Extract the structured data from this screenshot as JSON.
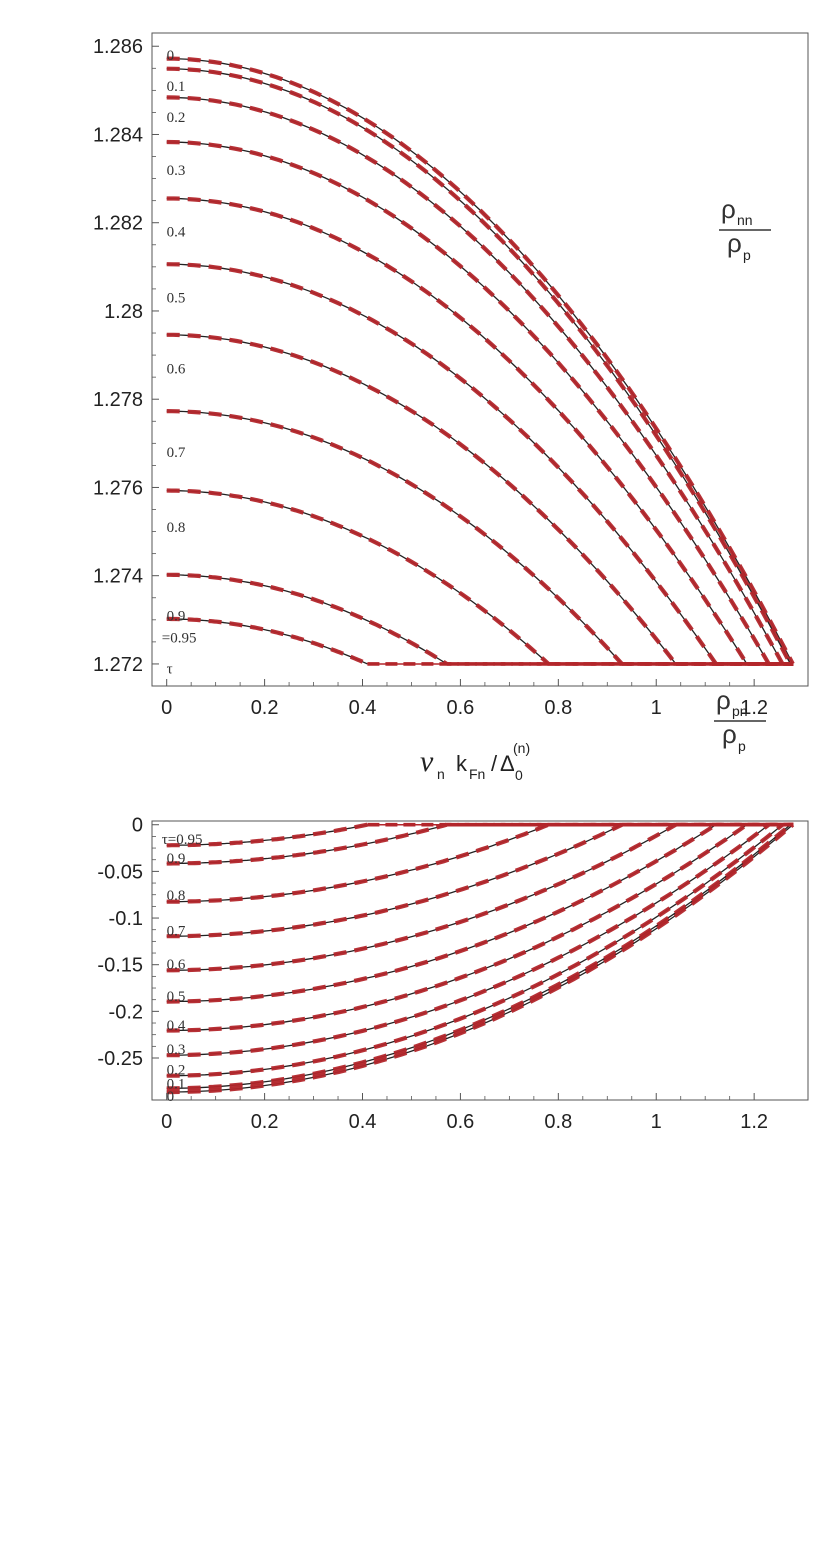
{
  "chart_data": [
    {
      "type": "line",
      "ratio_label": {
        "numerator": "ρ",
        "numerator_sub": "nn",
        "denominator": "ρ",
        "denominator_sub": "p"
      },
      "xlabel": {
        "var": "v",
        "var_sub": "n",
        "k": "k",
        "k_sub": "Fn",
        "slash": "/",
        "delta": "Δ",
        "delta_sub": "0",
        "delta_sup": "(n)"
      },
      "xlim": [
        -0.03,
        1.31
      ],
      "ylim": [
        1.2715,
        1.2863
      ],
      "xticks": [
        0,
        0.2,
        0.4,
        0.6,
        0.8,
        1,
        1.2
      ],
      "xtick_labels": [
        "0",
        "0.2",
        "0.4",
        "0.6",
        "0.8",
        "1",
        "1.2"
      ],
      "yticks": [
        1.272,
        1.274,
        1.276,
        1.278,
        1.28,
        1.282,
        1.284,
        1.286
      ],
      "ytick_labels": [
        "1.272",
        "1.274",
        "1.276",
        "1.278",
        "1.28",
        "1.282",
        "1.284",
        "1.286"
      ],
      "curve_labels": [
        {
          "text": "0",
          "x": 0.0,
          "y": 1.2858
        },
        {
          "text": "0.1",
          "x": 0.0,
          "y": 1.2851
        },
        {
          "text": "0.2",
          "x": 0.0,
          "y": 1.2844
        },
        {
          "text": "0.3",
          "x": 0.0,
          "y": 1.2832
        },
        {
          "text": "0.4",
          "x": 0.0,
          "y": 1.2818
        },
        {
          "text": "0.5",
          "x": 0.0,
          "y": 1.2803
        },
        {
          "text": "0.6",
          "x": 0.0,
          "y": 1.2787
        },
        {
          "text": "0.7",
          "x": 0.0,
          "y": 1.2768
        },
        {
          "text": "0.8",
          "x": 0.0,
          "y": 1.2751
        },
        {
          "text": "0.9",
          "x": 0.0,
          "y": 1.2731
        },
        {
          "text": "=0.95",
          "x": -0.01,
          "y": 1.2726
        },
        {
          "text": "τ",
          "x": 0.0,
          "y": 1.2719
        }
      ],
      "series": [
        {
          "tau": 0,
          "y0": 1.28572,
          "xc": 1.279
        },
        {
          "tau": 0.1,
          "y0": 1.28549,
          "xc": 1.274
        },
        {
          "tau": 0.2,
          "y0": 1.28484,
          "xc": 1.258
        },
        {
          "tau": 0.3,
          "y0": 1.28383,
          "xc": 1.23
        },
        {
          "tau": 0.4,
          "y0": 1.28255,
          "xc": 1.185
        },
        {
          "tau": 0.5,
          "y0": 1.28106,
          "xc": 1.122
        },
        {
          "tau": 0.6,
          "y0": 1.27946,
          "xc": 1.04
        },
        {
          "tau": 0.7,
          "y0": 1.27773,
          "xc": 0.93
        },
        {
          "tau": 0.8,
          "y0": 1.27593,
          "xc": 0.78
        },
        {
          "tau": 0.9,
          "y0": 1.27402,
          "xc": 0.572
        },
        {
          "tau": 0.95,
          "y0": 1.27302,
          "xc": 0.41
        }
      ],
      "y_floor": 1.272
    },
    {
      "type": "line",
      "ratio_label": {
        "numerator": "ρ",
        "numerator_sub": "pn",
        "denominator": "ρ",
        "denominator_sub": "p"
      },
      "xlim": [
        -0.03,
        1.31
      ],
      "ylim": [
        -0.295,
        0.004
      ],
      "xticks": [
        0,
        0.2,
        0.4,
        0.6,
        0.8,
        1,
        1.2
      ],
      "xtick_labels": [
        "0",
        "0.2",
        "0.4",
        "0.6",
        "0.8",
        "1",
        "1.2"
      ],
      "yticks": [
        0,
        -0.05,
        -0.1,
        -0.15,
        -0.2,
        -0.25
      ],
      "ytick_labels": [
        "0",
        "-0.05",
        "-0.1",
        "-0.15",
        "-0.2",
        "-0.25"
      ],
      "curve_labels": [
        {
          "text": "τ=0.95",
          "x": -0.01,
          "y": -0.0155
        },
        {
          "text": "0.9",
          "x": 0.0,
          "y": -0.0355
        },
        {
          "text": "0.8",
          "x": 0.0,
          "y": -0.0755
        },
        {
          "text": "0.7",
          "x": 0.0,
          "y": -0.1135
        },
        {
          "text": "0.6",
          "x": 0.0,
          "y": -0.1495
        },
        {
          "text": "0.5",
          "x": 0.0,
          "y": -0.1835
        },
        {
          "text": "0.4",
          "x": 0.0,
          "y": -0.2145
        },
        {
          "text": "0.3",
          "x": 0.0,
          "y": -0.2405
        },
        {
          "text": "0.2",
          "x": 0.0,
          "y": -0.2625
        },
        {
          "text": "0.1",
          "x": 0.0,
          "y": -0.2775
        },
        {
          "text": "0",
          "x": 0.0,
          "y": -0.2905
        }
      ],
      "series": [
        {
          "tau": 0,
          "y0": -0.2865,
          "xc": 1.279
        },
        {
          "tau": 0.1,
          "y0": -0.2825,
          "xc": 1.274
        },
        {
          "tau": 0.2,
          "y0": -0.269,
          "xc": 1.258
        },
        {
          "tau": 0.3,
          "y0": -0.247,
          "xc": 1.23
        },
        {
          "tau": 0.4,
          "y0": -0.2205,
          "xc": 1.185
        },
        {
          "tau": 0.5,
          "y0": -0.1895,
          "xc": 1.122
        },
        {
          "tau": 0.6,
          "y0": -0.156,
          "xc": 1.04
        },
        {
          "tau": 0.7,
          "y0": -0.1195,
          "xc": 0.93
        },
        {
          "tau": 0.8,
          "y0": -0.0825,
          "xc": 0.78
        },
        {
          "tau": 0.9,
          "y0": -0.0415,
          "xc": 0.572
        },
        {
          "tau": 0.95,
          "y0": -0.022,
          "xc": 0.41
        }
      ],
      "y_floor": 0
    }
  ],
  "colors": {
    "exact": "#222222",
    "approx": "#b3262b",
    "axis": "#555555"
  }
}
